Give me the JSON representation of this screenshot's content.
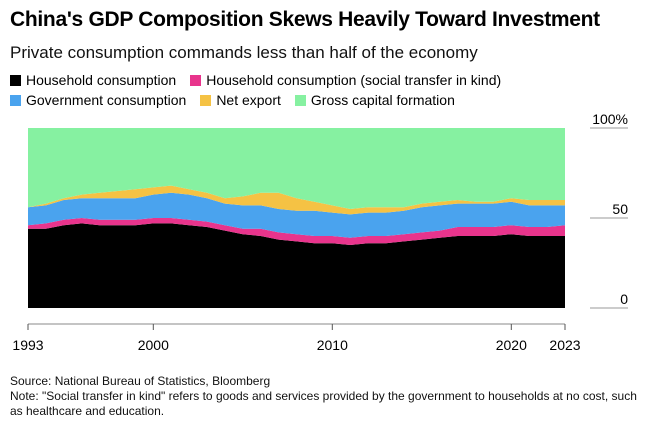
{
  "title": "China's GDP Composition Skews Heavily Toward Investment",
  "subtitle": "Private consumption commands less than half of the economy",
  "source": "Source: National Bureau of Statistics, Bloomberg",
  "note": "Note: \"Social transfer in kind\" refers to goods and services provided by the government to households at no cost, such as healthcare and education.",
  "chart_data": {
    "type": "area",
    "stacked": true,
    "x": [
      1993,
      1994,
      1995,
      1996,
      1997,
      1998,
      1999,
      2000,
      2001,
      2002,
      2003,
      2004,
      2005,
      2006,
      2007,
      2008,
      2009,
      2010,
      2011,
      2012,
      2013,
      2014,
      2015,
      2016,
      2017,
      2018,
      2019,
      2020,
      2021,
      2022,
      2023
    ],
    "x_ticks": [
      1993,
      2000,
      2010,
      2020,
      2023
    ],
    "x_tick_labels": [
      "1993",
      "2000",
      "2010",
      "2020",
      "2023"
    ],
    "y_ticks": [
      0,
      50,
      100
    ],
    "y_tick_labels": [
      "0",
      "50",
      "100%"
    ],
    "ylim": [
      0,
      100
    ],
    "series": [
      {
        "name": "Household consumption",
        "color": "#000000",
        "values": [
          44,
          44,
          46,
          47,
          46,
          46,
          46,
          47,
          47,
          46,
          45,
          43,
          41,
          40,
          38,
          37,
          36,
          36,
          35,
          36,
          36,
          37,
          38,
          39,
          40,
          40,
          40,
          41,
          40,
          40,
          40
        ]
      },
      {
        "name": "Household consumption (social transfer in kind)",
        "color": "#e8348c",
        "values": [
          2,
          3,
          3,
          3,
          3,
          3,
          3,
          3,
          3,
          3,
          3,
          3,
          3,
          4,
          4,
          4,
          4,
          4,
          4,
          4,
          4,
          4,
          4,
          4,
          5,
          5,
          5,
          5,
          5,
          5,
          6
        ]
      },
      {
        "name": "Government consumption",
        "color": "#4aa3ee",
        "values": [
          10,
          10,
          11,
          11,
          12,
          12,
          12,
          13,
          14,
          14,
          13,
          12,
          13,
          13,
          13,
          13,
          14,
          13,
          13,
          13,
          13,
          13,
          14,
          14,
          13,
          13,
          13,
          13,
          12,
          12,
          11
        ]
      },
      {
        "name": "Net export",
        "color": "#f5c244",
        "values": [
          0,
          1,
          1,
          2,
          3,
          4,
          5,
          4,
          4,
          3,
          3,
          3,
          5,
          7,
          9,
          7,
          5,
          4,
          3,
          3,
          3,
          2,
          2,
          2,
          2,
          1,
          1,
          2,
          3,
          3,
          3
        ]
      },
      {
        "name": "Gross capital formation",
        "color": "#86f1a1",
        "values": [
          44,
          42,
          39,
          37,
          36,
          35,
          34,
          33,
          32,
          34,
          36,
          39,
          38,
          36,
          36,
          39,
          41,
          43,
          45,
          44,
          44,
          44,
          42,
          41,
          40,
          41,
          41,
          39,
          40,
          40,
          40
        ]
      }
    ]
  }
}
